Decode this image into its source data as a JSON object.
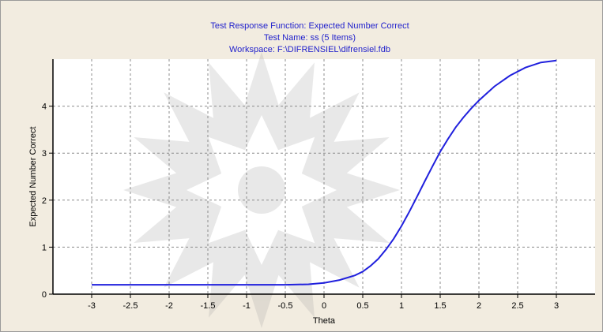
{
  "chart_data": {
    "type": "line",
    "title_lines": [
      "Test Response Function: Expected Number Correct",
      "Test Name: ss (5 Items)",
      "Workspace: F:\\DIFRENSIEL\\difrensiel.fdb"
    ],
    "xlabel": "Theta",
    "ylabel": "Expected Number Correct",
    "xlim": [
      -3.5,
      3.5
    ],
    "ylim": [
      0,
      5
    ],
    "x_ticks": [
      -3,
      -2.5,
      -2,
      -1.5,
      -1,
      -0.5,
      0,
      0.5,
      1,
      1.5,
      2,
      2.5,
      3
    ],
    "y_ticks": [
      0,
      1,
      2,
      3,
      4
    ],
    "grid": true,
    "colors": {
      "line": "#2020dd",
      "title": "#2222cc",
      "grid": "#8c8c8c",
      "plot_bg": "#ffffff",
      "outer_bg": "#f2ece0"
    },
    "series": [
      {
        "x": [
          -3,
          -2.5,
          -2,
          -1.5,
          -1,
          -0.5,
          -0.2,
          0,
          0.2,
          0.4,
          0.5,
          0.6,
          0.7,
          0.8,
          0.9,
          1.0,
          1.1,
          1.2,
          1.3,
          1.4,
          1.5,
          1.6,
          1.7,
          1.8,
          1.9,
          2.0,
          2.2,
          2.4,
          2.6,
          2.8,
          3.0
        ],
        "y": [
          0.2,
          0.2,
          0.2,
          0.2,
          0.2,
          0.2,
          0.21,
          0.24,
          0.3,
          0.4,
          0.48,
          0.6,
          0.75,
          0.95,
          1.18,
          1.45,
          1.75,
          2.07,
          2.4,
          2.72,
          3.03,
          3.3,
          3.55,
          3.76,
          3.95,
          4.12,
          4.42,
          4.65,
          4.82,
          4.93,
          4.97
        ]
      }
    ]
  }
}
